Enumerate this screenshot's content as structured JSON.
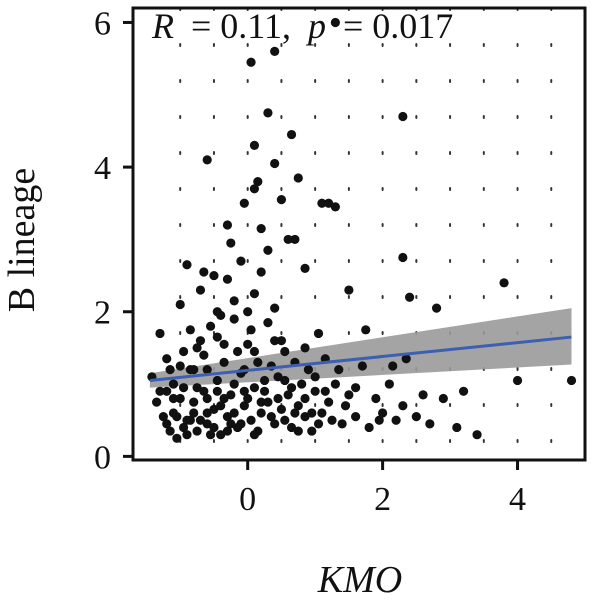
{
  "chart_data": {
    "type": "scatter",
    "title": "",
    "xlabel": "KMO",
    "ylabel": "B lineage",
    "annotation": {
      "r_label": "R",
      "r_value": "= 0.11,",
      "p_label": "p",
      "p_value": "= 0.017"
    },
    "xlim": [
      -1.7,
      5.0
    ],
    "ylim": [
      -0.05,
      6.2
    ],
    "x_ticks": [
      0,
      2,
      4
    ],
    "y_ticks": [
      0,
      2,
      4,
      6
    ],
    "x_tick_labels": [
      "0",
      "2",
      "4"
    ],
    "y_tick_labels": [
      "0",
      "2",
      "4",
      "6"
    ],
    "grid": "dotted",
    "point_color": "#111111",
    "fit": {
      "x_start": -1.45,
      "x_end": 4.8,
      "y_start": 1.05,
      "y_end": 1.65,
      "ci_lower_start": 0.95,
      "ci_upper_start": 1.15,
      "ci_lower_end": 1.27,
      "ci_upper_end": 2.05,
      "line_color": "#3d5fb0",
      "band_color": "#9a9a9a"
    },
    "points": [
      [
        -1.42,
        1.1
      ],
      [
        -1.3,
        1.7
      ],
      [
        -1.25,
        0.55
      ],
      [
        -1.2,
        0.9
      ],
      [
        -1.15,
        0.35
      ],
      [
        -1.1,
        0.6
      ],
      [
        -1.05,
        0.25
      ],
      [
        -1.0,
        0.8
      ],
      [
        -0.95,
        1.45
      ],
      [
        -0.9,
        0.5
      ],
      [
        -0.85,
        1.2
      ],
      [
        -0.8,
        0.75
      ],
      [
        -0.75,
        0.35
      ],
      [
        -0.7,
        1.6
      ],
      [
        -0.65,
        0.9
      ],
      [
        -0.6,
        0.45
      ],
      [
        -0.55,
        1.8
      ],
      [
        -0.5,
        0.65
      ],
      [
        -0.45,
        1.05
      ],
      [
        -0.4,
        0.3
      ],
      [
        -0.35,
        1.3
      ],
      [
        -0.3,
        0.55
      ],
      [
        -0.25,
        0.85
      ],
      [
        -0.2,
        1.9
      ],
      [
        -0.15,
        0.4
      ],
      [
        -0.1,
        1.15
      ],
      [
        -0.05,
        0.7
      ],
      [
        0.0,
        1.55
      ],
      [
        0.05,
        0.5
      ],
      [
        0.1,
        0.95
      ],
      [
        0.15,
        1.3
      ],
      [
        0.2,
        0.6
      ],
      [
        -1.35,
        0.75
      ],
      [
        -1.2,
        1.35
      ],
      [
        -1.1,
        1.0
      ],
      [
        -0.95,
        0.4
      ],
      [
        -0.85,
        1.75
      ],
      [
        -0.75,
        0.95
      ],
      [
        -0.65,
        1.4
      ],
      [
        -0.55,
        0.3
      ],
      [
        -0.45,
        1.65
      ],
      [
        -0.35,
        0.8
      ],
      [
        -0.25,
        0.45
      ],
      [
        -0.15,
        1.45
      ],
      [
        -0.05,
        0.9
      ],
      [
        0.05,
        1.75
      ],
      [
        0.15,
        0.35
      ],
      [
        0.25,
        1.05
      ],
      [
        -1.0,
        2.1
      ],
      [
        -0.9,
        2.65
      ],
      [
        -0.8,
        1.2
      ],
      [
        -0.7,
        2.3
      ],
      [
        -0.6,
        0.6
      ],
      [
        -0.5,
        2.5
      ],
      [
        -0.4,
        1.95
      ],
      [
        -0.3,
        2.45
      ],
      [
        -0.2,
        2.15
      ],
      [
        -0.1,
        2.7
      ],
      [
        0.0,
        2.0
      ],
      [
        0.1,
        2.25
      ],
      [
        0.2,
        2.55
      ],
      [
        0.3,
        1.85
      ],
      [
        0.4,
        2.05
      ],
      [
        0.5,
        1.6
      ],
      [
        0.3,
        0.75
      ],
      [
        0.35,
        1.25
      ],
      [
        0.4,
        0.45
      ],
      [
        0.45,
        1.1
      ],
      [
        0.5,
        0.65
      ],
      [
        0.55,
        1.45
      ],
      [
        0.6,
        0.85
      ],
      [
        0.65,
        0.4
      ],
      [
        0.7,
        1.3
      ],
      [
        0.75,
        0.7
      ],
      [
        0.8,
        1.0
      ],
      [
        0.85,
        0.55
      ],
      [
        0.9,
        1.2
      ],
      [
        0.95,
        0.35
      ],
      [
        1.0,
        0.9
      ],
      [
        1.05,
        1.7
      ],
      [
        1.1,
        0.6
      ],
      [
        1.15,
        1.35
      ],
      [
        1.2,
        0.75
      ],
      [
        1.3,
        1.0
      ],
      [
        1.4,
        0.45
      ],
      [
        1.5,
        0.85
      ],
      [
        1.6,
        0.55
      ],
      [
        1.7,
        1.25
      ],
      [
        1.75,
        1.75
      ],
      [
        1.8,
        0.4
      ],
      [
        1.9,
        0.8
      ],
      [
        2.0,
        0.6
      ],
      [
        2.1,
        1.0
      ],
      [
        2.2,
        0.5
      ],
      [
        2.3,
        0.7
      ],
      [
        2.35,
        1.35
      ],
      [
        2.4,
        2.2
      ],
      [
        2.5,
        0.55
      ],
      [
        2.6,
        0.85
      ],
      [
        2.7,
        0.45
      ],
      [
        2.8,
        2.05
      ],
      [
        2.9,
        0.8
      ],
      [
        3.1,
        0.4
      ],
      [
        3.2,
        0.9
      ],
      [
        3.4,
        0.3
      ],
      [
        3.8,
        2.4
      ],
      [
        4.0,
        1.05
      ],
      [
        4.8,
        1.05
      ],
      [
        2.3,
        2.75
      ],
      [
        1.5,
        2.3
      ],
      [
        1.3,
        3.45
      ],
      [
        1.2,
        3.5
      ],
      [
        1.1,
        3.5
      ],
      [
        0.7,
        3.0
      ],
      [
        0.6,
        3.0
      ],
      [
        0.5,
        3.55
      ],
      [
        0.3,
        2.85
      ],
      [
        0.2,
        3.15
      ],
      [
        0.1,
        3.7
      ],
      [
        -0.05,
        3.5
      ],
      [
        -0.3,
        3.2
      ],
      [
        -0.6,
        4.1
      ],
      [
        0.1,
        4.3
      ],
      [
        0.4,
        4.05
      ],
      [
        0.65,
        4.45
      ],
      [
        0.75,
        3.85
      ],
      [
        0.3,
        4.75
      ],
      [
        2.3,
        4.7
      ],
      [
        0.05,
        5.45
      ],
      [
        0.4,
        5.6
      ],
      [
        1.3,
        6.0
      ],
      [
        0.15,
        3.8
      ],
      [
        -0.25,
        2.95
      ],
      [
        -0.45,
        2.0
      ],
      [
        0.85,
        2.6
      ],
      [
        -0.65,
        2.55
      ],
      [
        -1.2,
        0.45
      ],
      [
        -1.1,
        0.8
      ],
      [
        -1.05,
        0.55
      ],
      [
        -0.95,
        0.95
      ],
      [
        -0.9,
        0.3
      ],
      [
        -0.8,
        0.6
      ],
      [
        -0.7,
        0.5
      ],
      [
        -0.6,
        0.8
      ],
      [
        -0.5,
        0.4
      ],
      [
        -0.4,
        0.7
      ],
      [
        -0.3,
        0.35
      ],
      [
        -0.2,
        0.6
      ],
      [
        -0.1,
        0.45
      ],
      [
        0.0,
        0.8
      ],
      [
        0.1,
        0.3
      ],
      [
        0.2,
        0.75
      ],
      [
        0.35,
        0.55
      ],
      [
        0.45,
        0.8
      ],
      [
        0.55,
        0.5
      ],
      [
        0.65,
        0.95
      ],
      [
        0.75,
        0.35
      ],
      [
        0.85,
        0.8
      ],
      [
        0.95,
        0.6
      ],
      [
        1.05,
        0.45
      ],
      [
        -1.3,
        0.9
      ],
      [
        -1.15,
        1.2
      ],
      [
        -1.0,
        1.25
      ],
      [
        -0.85,
        0.5
      ],
      [
        -0.75,
        1.5
      ],
      [
        -0.6,
        1.2
      ],
      [
        -0.45,
        0.9
      ],
      [
        -0.35,
        1.55
      ],
      [
        -0.2,
        1.0
      ],
      [
        -0.05,
        1.2
      ],
      [
        0.1,
        1.45
      ],
      [
        0.25,
        0.9
      ],
      [
        0.4,
        1.6
      ],
      [
        0.55,
        1.05
      ],
      [
        0.7,
        0.6
      ],
      [
        0.85,
        1.5
      ],
      [
        1.0,
        1.1
      ],
      [
        1.15,
        0.9
      ],
      [
        1.25,
        0.5
      ],
      [
        1.35,
        1.2
      ],
      [
        1.45,
        0.7
      ],
      [
        1.6,
        0.95
      ],
      [
        1.95,
        0.5
      ],
      [
        2.15,
        1.25
      ]
    ]
  }
}
